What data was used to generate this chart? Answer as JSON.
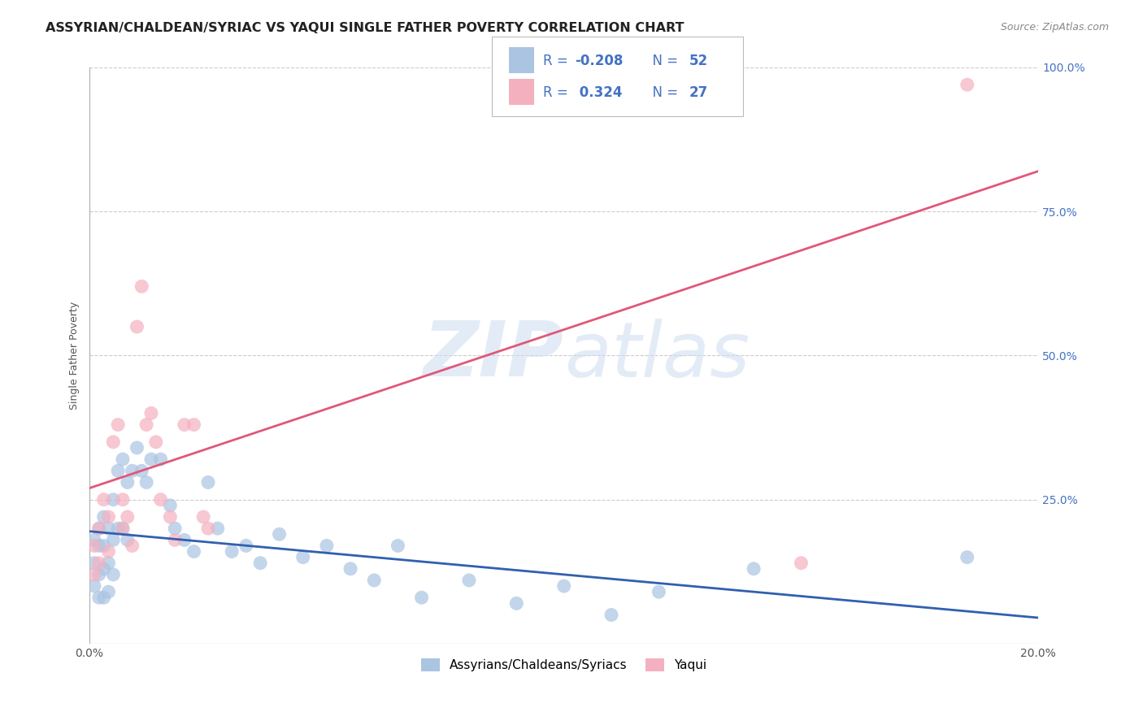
{
  "title": "ASSYRIAN/CHALDEAN/SYRIAC VS YAQUI SINGLE FATHER POVERTY CORRELATION CHART",
  "source": "Source: ZipAtlas.com",
  "ylabel": "Single Father Poverty",
  "xlim": [
    0.0,
    0.2
  ],
  "ylim": [
    0.0,
    1.0
  ],
  "xticks": [
    0.0,
    0.05,
    0.1,
    0.15,
    0.2
  ],
  "xtick_labels": [
    "0.0%",
    "",
    "",
    "",
    "20.0%"
  ],
  "yticks": [
    0.0,
    0.25,
    0.5,
    0.75,
    1.0
  ],
  "ytick_labels_right": [
    "",
    "25.0%",
    "50.0%",
    "75.0%",
    "100.0%"
  ],
  "blue_R": -0.208,
  "blue_N": 52,
  "pink_R": 0.324,
  "pink_N": 27,
  "blue_color": "#aac4e2",
  "pink_color": "#f5b0c0",
  "blue_line_color": "#3060b0",
  "pink_line_color": "#e05878",
  "blue_line_y0": 0.195,
  "blue_line_y1": 0.045,
  "pink_line_y0": 0.27,
  "pink_line_y1": 0.82,
  "blue_scatter_x": [
    0.001,
    0.001,
    0.001,
    0.002,
    0.002,
    0.002,
    0.002,
    0.003,
    0.003,
    0.003,
    0.003,
    0.004,
    0.004,
    0.004,
    0.005,
    0.005,
    0.005,
    0.006,
    0.006,
    0.007,
    0.007,
    0.008,
    0.008,
    0.009,
    0.01,
    0.011,
    0.012,
    0.013,
    0.015,
    0.017,
    0.018,
    0.02,
    0.022,
    0.025,
    0.027,
    0.03,
    0.033,
    0.036,
    0.04,
    0.045,
    0.05,
    0.055,
    0.06,
    0.065,
    0.07,
    0.08,
    0.09,
    0.1,
    0.11,
    0.12,
    0.14,
    0.185
  ],
  "blue_scatter_y": [
    0.18,
    0.14,
    0.1,
    0.2,
    0.17,
    0.12,
    0.08,
    0.22,
    0.17,
    0.13,
    0.08,
    0.2,
    0.14,
    0.09,
    0.25,
    0.18,
    0.12,
    0.3,
    0.2,
    0.32,
    0.2,
    0.28,
    0.18,
    0.3,
    0.34,
    0.3,
    0.28,
    0.32,
    0.32,
    0.24,
    0.2,
    0.18,
    0.16,
    0.28,
    0.2,
    0.16,
    0.17,
    0.14,
    0.19,
    0.15,
    0.17,
    0.13,
    0.11,
    0.17,
    0.08,
    0.11,
    0.07,
    0.1,
    0.05,
    0.09,
    0.13,
    0.15
  ],
  "pink_scatter_x": [
    0.001,
    0.001,
    0.002,
    0.002,
    0.003,
    0.004,
    0.004,
    0.005,
    0.006,
    0.007,
    0.007,
    0.008,
    0.009,
    0.01,
    0.011,
    0.012,
    0.013,
    0.014,
    0.015,
    0.017,
    0.018,
    0.02,
    0.022,
    0.024,
    0.025,
    0.15,
    0.185
  ],
  "pink_scatter_y": [
    0.17,
    0.12,
    0.2,
    0.14,
    0.25,
    0.22,
    0.16,
    0.35,
    0.38,
    0.25,
    0.2,
    0.22,
    0.17,
    0.55,
    0.62,
    0.38,
    0.4,
    0.35,
    0.25,
    0.22,
    0.18,
    0.38,
    0.38,
    0.22,
    0.2,
    0.14,
    0.97
  ],
  "watermark_zip": "ZIP",
  "watermark_atlas": "atlas",
  "background_color": "#ffffff",
  "grid_color": "#cccccc",
  "title_fontsize": 11.5,
  "axis_label_fontsize": 9,
  "tick_fontsize": 10,
  "right_tick_color": "#4472c4",
  "legend_text_color": "#4472c4"
}
